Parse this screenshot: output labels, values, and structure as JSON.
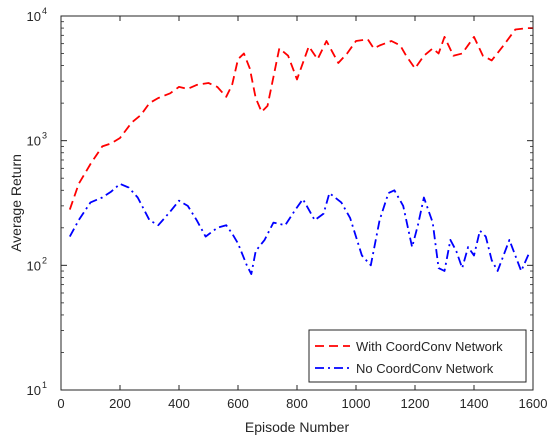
{
  "chart_data": {
    "type": "line",
    "xlabel": "Episode Number",
    "ylabel": "Average Return",
    "xlim": [
      0,
      1600
    ],
    "ylim": [
      10,
      10000
    ],
    "yscale": "log",
    "grid": false,
    "legend_position": "bottom-right",
    "x_ticks": [
      0,
      200,
      400,
      600,
      800,
      1000,
      1200,
      1400,
      1600
    ],
    "x_tick_labels": [
      "0",
      "200",
      "400",
      "600",
      "800",
      "1000",
      "1200",
      "1400",
      "1600"
    ],
    "y_ticks": [
      10,
      100,
      1000,
      10000
    ],
    "y_tick_labels": [
      {
        "base": "10",
        "exp": "1"
      },
      {
        "base": "10",
        "exp": "2"
      },
      {
        "base": "10",
        "exp": "3"
      },
      {
        "base": "10",
        "exp": "4"
      }
    ],
    "series": [
      {
        "name": "With CoordConv Network",
        "color": "#ff0000",
        "dash": "dashed",
        "x": [
          30,
          60,
          100,
          140,
          170,
          200,
          240,
          270,
          300,
          330,
          370,
          400,
          430,
          460,
          500,
          530,
          560,
          580,
          600,
          620,
          640,
          660,
          680,
          700,
          740,
          770,
          800,
          840,
          870,
          900,
          940,
          970,
          1000,
          1040,
          1060,
          1080,
          1120,
          1150,
          1170,
          1200,
          1230,
          1260,
          1280,
          1300,
          1330,
          1360,
          1400,
          1430,
          1460,
          1500,
          1540,
          1580,
          1600
        ],
        "y": [
          280,
          450,
          650,
          900,
          950,
          1050,
          1400,
          1600,
          2000,
          2200,
          2400,
          2700,
          2600,
          2800,
          2900,
          2700,
          2250,
          2800,
          4500,
          5000,
          3800,
          2200,
          1700,
          1900,
          5500,
          4800,
          3100,
          5700,
          4500,
          6300,
          4200,
          5000,
          6300,
          6500,
          5500,
          5800,
          6300,
          5800,
          4800,
          3800,
          4800,
          5500,
          5000,
          6800,
          4800,
          5000,
          6800,
          4800,
          4400,
          5800,
          7800,
          8000,
          8000
        ]
      },
      {
        "name": "No CoordConv Network",
        "color": "#0000ff",
        "dash": "dashdot",
        "x": [
          30,
          60,
          100,
          140,
          170,
          200,
          230,
          260,
          300,
          330,
          370,
          400,
          430,
          460,
          490,
          530,
          560,
          580,
          600,
          630,
          645,
          660,
          690,
          720,
          760,
          790,
          820,
          860,
          890,
          910,
          950,
          980,
          1020,
          1050,
          1080,
          1110,
          1130,
          1160,
          1190,
          1210,
          1230,
          1260,
          1280,
          1300,
          1320,
          1340,
          1360,
          1380,
          1400,
          1420,
          1440,
          1460,
          1480,
          1500,
          1520,
          1540,
          1560,
          1590
        ],
        "y": [
          170,
          230,
          320,
          350,
          390,
          450,
          420,
          350,
          230,
          210,
          270,
          330,
          300,
          230,
          170,
          200,
          210,
          180,
          150,
          100,
          85,
          130,
          160,
          220,
          210,
          270,
          340,
          230,
          260,
          380,
          320,
          240,
          120,
          100,
          230,
          380,
          400,
          300,
          140,
          210,
          350,
          220,
          95,
          90,
          160,
          130,
          95,
          140,
          120,
          190,
          170,
          110,
          90,
          120,
          160,
          120,
          90,
          130
        ]
      }
    ]
  }
}
